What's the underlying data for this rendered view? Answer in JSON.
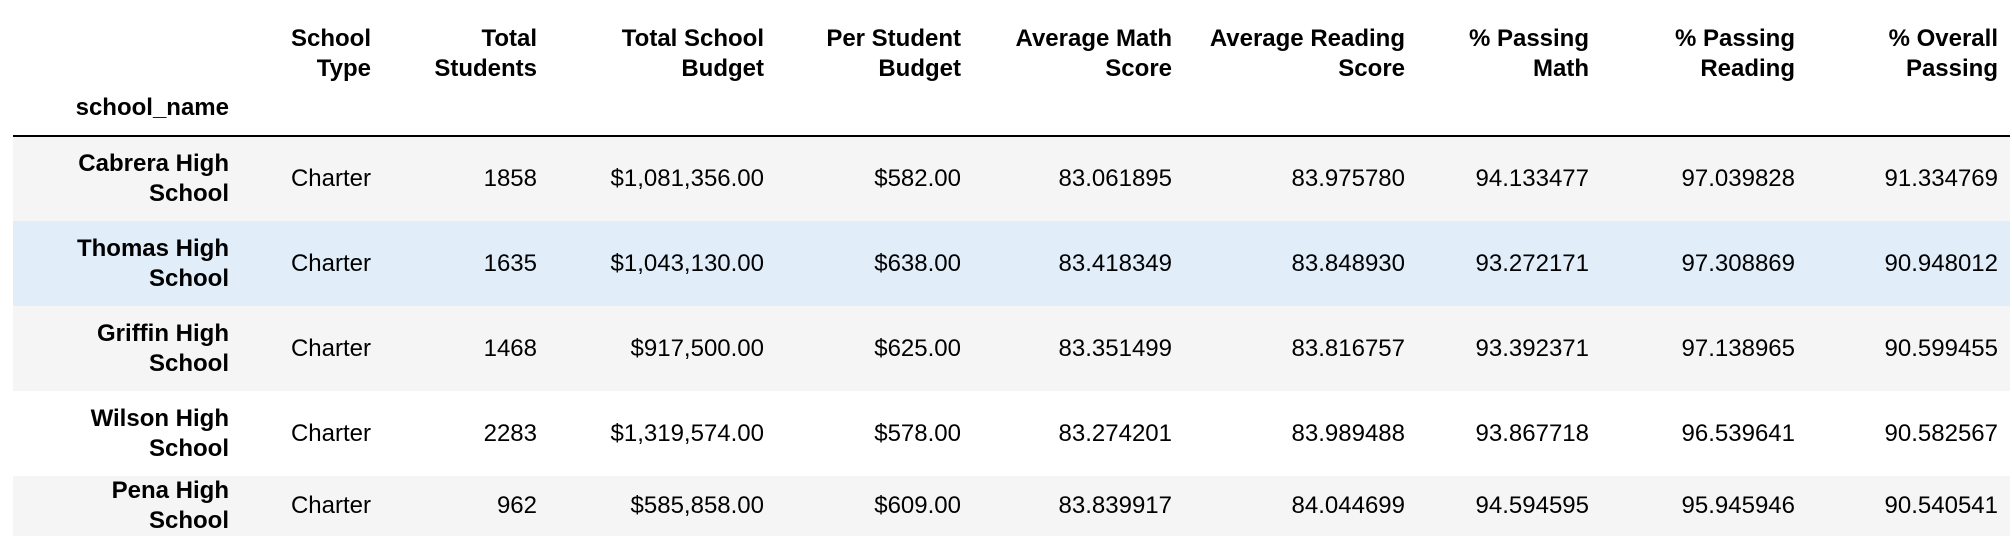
{
  "table": {
    "columns": [
      "School Type",
      "Total Students",
      "Total School Budget",
      "Per Student Budget",
      "Average Math Score",
      "Average Reading Score",
      "% Passing Math",
      "% Passing Reading",
      "% Overall Passing"
    ],
    "index_name": "school_name",
    "rows": [
      {
        "school_name": "Cabrera High School",
        "values": [
          "Charter",
          "1858",
          "$1,081,356.00",
          "$582.00",
          "83.061895",
          "83.975780",
          "94.133477",
          "97.039828",
          "91.334769"
        ]
      },
      {
        "school_name": "Thomas High School",
        "values": [
          "Charter",
          "1635",
          "$1,043,130.00",
          "$638.00",
          "83.418349",
          "83.848930",
          "93.272171",
          "97.308869",
          "90.948012"
        ]
      },
      {
        "school_name": "Griffin High School",
        "values": [
          "Charter",
          "1468",
          "$917,500.00",
          "$625.00",
          "83.351499",
          "83.816757",
          "93.392371",
          "97.138965",
          "90.599455"
        ]
      },
      {
        "school_name": "Wilson High School",
        "values": [
          "Charter",
          "2283",
          "$1,319,574.00",
          "$578.00",
          "83.274201",
          "83.989488",
          "93.867718",
          "96.539641",
          "90.582567"
        ]
      },
      {
        "school_name": "Pena High School",
        "values": [
          "Charter",
          "962",
          "$585,858.00",
          "$609.00",
          "83.839917",
          "84.044699",
          "94.594595",
          "95.945946",
          "90.540541"
        ]
      }
    ],
    "highlighted_row": 1,
    "colors": {
      "stripe": "#f5f5f5",
      "hover": "#e1eefa",
      "header_rule": "#000000"
    }
  }
}
